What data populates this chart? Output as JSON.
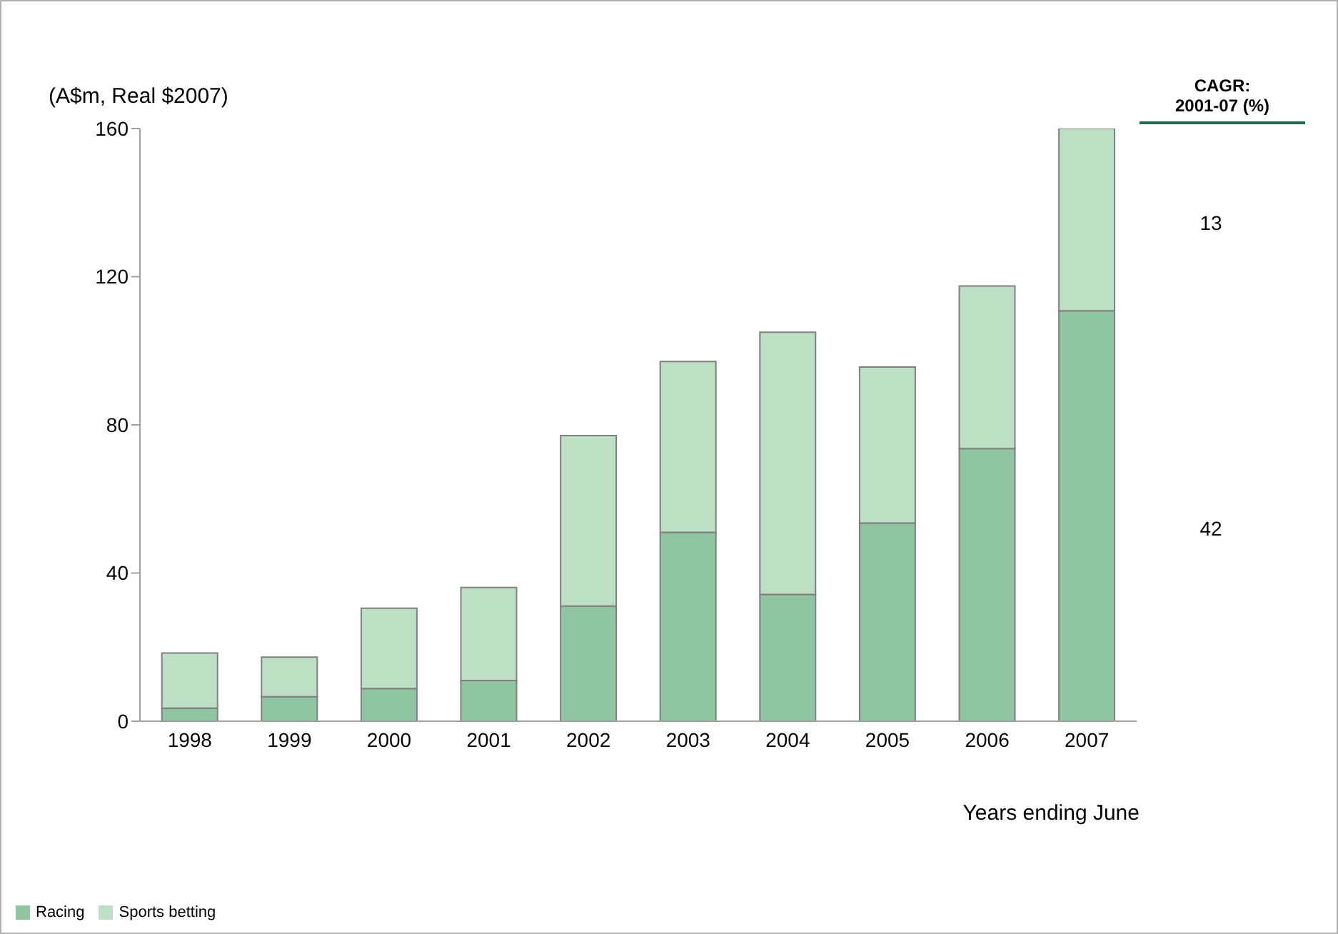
{
  "chart_data": {
    "type": "bar",
    "stacked": true,
    "ylabel": "(A$m, Real $2007)",
    "xlabel": "Years ending June",
    "categories": [
      "1998",
      "1999",
      "2000",
      "2001",
      "2002",
      "2003",
      "2004",
      "2005",
      "2006",
      "2007"
    ],
    "series": [
      {
        "name": "Racing",
        "color": "#8fc5a0",
        "values": [
          3.5,
          6.6,
          8.8,
          11.0,
          31.1,
          51.0,
          34.2,
          53.5,
          73.6,
          110.8
        ]
      },
      {
        "name": "Sports betting",
        "color": "#bddfc4",
        "values": [
          14.9,
          10.7,
          21.7,
          25.1,
          46.0,
          46.1,
          70.8,
          42.1,
          43.9,
          49.2
        ]
      }
    ],
    "ylim": [
      0,
      160
    ],
    "yticks": [
      0,
      40,
      80,
      120,
      160
    ],
    "legend": "bottom left",
    "annotations": [
      "CAGR:\n2001-07 (%)",
      "13",
      "42"
    ]
  }
}
